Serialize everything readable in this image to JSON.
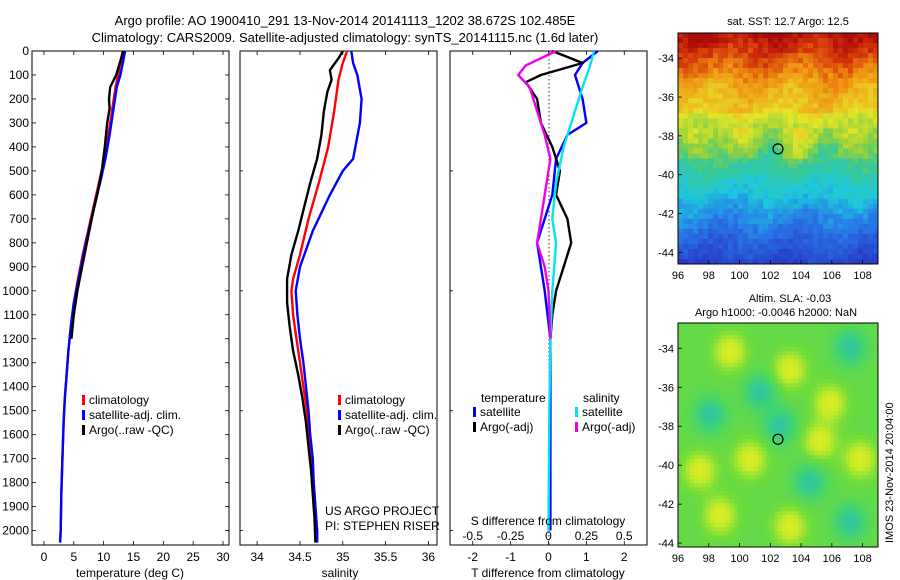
{
  "header": {
    "line1": "Argo profile: AO 1900410_291 13-Nov-2014 20141113_1202 38.672S 102.485E",
    "line2": "Climatology: CARS2009. Satellite-adjusted climatology: synTS_20141115.nc (1.6d later)"
  },
  "colors": {
    "climatology": "#ff0000",
    "satellite": "#0000ff",
    "argo": "#000000",
    "sal_satellite": "#00e5ee",
    "sal_argo": "#ee00ee"
  },
  "chart_data": [
    {
      "id": "temperature",
      "type": "line",
      "xlabel": "temperature (deg C)",
      "ylabel": "",
      "xlim": [
        -2,
        31
      ],
      "ylim": [
        2060,
        0
      ],
      "xticks": [
        0,
        5,
        10,
        15,
        20,
        25,
        30
      ],
      "yticks": [
        0,
        100,
        200,
        300,
        400,
        500,
        600,
        700,
        800,
        900,
        1000,
        1100,
        1200,
        1300,
        1400,
        1500,
        1600,
        1700,
        1800,
        1900,
        2000
      ],
      "legend": [
        "climatology",
        "satellite-adj. clim.",
        "Argo(..raw -QC)"
      ],
      "series": [
        {
          "name": "climatology",
          "color": "#ff0000",
          "points": [
            [
              13.2,
              0
            ],
            [
              12.9,
              40
            ],
            [
              12.4,
              100
            ],
            [
              12.0,
              150
            ],
            [
              11.4,
              250
            ],
            [
              10.8,
              350
            ],
            [
              10.1,
              450
            ],
            [
              9.2,
              550
            ],
            [
              8.3,
              650
            ],
            [
              7.4,
              750
            ],
            [
              6.5,
              850
            ],
            [
              5.7,
              950
            ],
            [
              5.0,
              1050
            ],
            [
              4.5,
              1150
            ],
            [
              4.1,
              1250
            ],
            [
              3.8,
              1350
            ],
            [
              3.5,
              1450
            ],
            [
              3.3,
              1550
            ],
            [
              3.1,
              1700
            ],
            [
              2.9,
              1850
            ],
            [
              2.8,
              2000
            ],
            [
              2.7,
              2050
            ]
          ]
        },
        {
          "name": "satellite-adj. clim.",
          "color": "#0000ff",
          "points": [
            [
              13.6,
              0
            ],
            [
              13.3,
              40
            ],
            [
              12.8,
              100
            ],
            [
              12.2,
              150
            ],
            [
              11.6,
              250
            ],
            [
              11.0,
              350
            ],
            [
              10.3,
              450
            ],
            [
              9.4,
              550
            ],
            [
              8.4,
              650
            ],
            [
              7.5,
              750
            ],
            [
              6.6,
              850
            ],
            [
              5.8,
              950
            ],
            [
              5.0,
              1050
            ],
            [
              4.5,
              1150
            ],
            [
              4.1,
              1250
            ],
            [
              3.8,
              1350
            ],
            [
              3.5,
              1450
            ],
            [
              3.3,
              1550
            ],
            [
              3.1,
              1700
            ],
            [
              2.9,
              1850
            ],
            [
              2.8,
              2000
            ],
            [
              2.7,
              2050
            ]
          ]
        },
        {
          "name": "Argo(..raw -QC)",
          "color": "#000000",
          "points": [
            [
              13.3,
              0
            ],
            [
              12.7,
              50
            ],
            [
              12.1,
              100
            ],
            [
              11.1,
              150
            ],
            [
              10.9,
              200
            ],
            [
              11.0,
              240
            ],
            [
              10.6,
              300
            ],
            [
              10.2,
              400
            ],
            [
              9.7,
              500
            ],
            [
              8.9,
              600
            ],
            [
              8.0,
              700
            ],
            [
              7.2,
              800
            ],
            [
              6.4,
              900
            ],
            [
              5.6,
              1000
            ],
            [
              5.0,
              1100
            ],
            [
              4.6,
              1200
            ]
          ]
        }
      ]
    },
    {
      "id": "salinity",
      "type": "line",
      "xlabel": "salinity",
      "ylabel": "",
      "xlim": [
        33.8,
        36.1
      ],
      "ylim": [
        2060,
        0
      ],
      "xticks": [
        34,
        34.5,
        35,
        35.5,
        36
      ],
      "xticklabels": [
        "34",
        "34.5",
        "35",
        "35.5",
        "36"
      ],
      "legend": [
        "climatology",
        "satellite-adj. clim.",
        "Argo(..raw -QC)"
      ],
      "annotation": [
        "US ARGO PROJECT",
        "PI: STEPHEN RISER"
      ],
      "series": [
        {
          "name": "climatology",
          "color": "#ff0000",
          "points": [
            [
              35.05,
              0
            ],
            [
              35.0,
              50
            ],
            [
              34.95,
              120
            ],
            [
              34.9,
              250
            ],
            [
              34.83,
              400
            ],
            [
              34.72,
              550
            ],
            [
              34.6,
              700
            ],
            [
              34.5,
              850
            ],
            [
              34.42,
              950
            ],
            [
              34.4,
              1000
            ],
            [
              34.42,
              1100
            ],
            [
              34.46,
              1200
            ],
            [
              34.5,
              1300
            ],
            [
              34.54,
              1400
            ],
            [
              34.58,
              1500
            ],
            [
              34.61,
              1600
            ],
            [
              34.64,
              1700
            ],
            [
              34.66,
              1800
            ],
            [
              34.68,
              1900
            ],
            [
              34.7,
              2000
            ],
            [
              34.7,
              2050
            ]
          ]
        },
        {
          "name": "satellite-adj. clim.",
          "color": "#0000ff",
          "points": [
            [
              35.1,
              0
            ],
            [
              35.12,
              50
            ],
            [
              35.17,
              100
            ],
            [
              35.22,
              200
            ],
            [
              35.2,
              300
            ],
            [
              35.12,
              450
            ],
            [
              35.0,
              500
            ],
            [
              34.85,
              600
            ],
            [
              34.65,
              750
            ],
            [
              34.5,
              900
            ],
            [
              34.45,
              1000
            ],
            [
              34.47,
              1100
            ],
            [
              34.5,
              1200
            ],
            [
              34.54,
              1300
            ],
            [
              34.57,
              1400
            ],
            [
              34.6,
              1500
            ],
            [
              34.62,
              1600
            ],
            [
              34.65,
              1700
            ],
            [
              34.66,
              1800
            ],
            [
              34.68,
              1900
            ],
            [
              34.7,
              2000
            ],
            [
              34.7,
              2050
            ]
          ]
        },
        {
          "name": "Argo(..raw -QC)",
          "color": "#000000",
          "points": [
            [
              35.0,
              0
            ],
            [
              34.95,
              30
            ],
            [
              34.85,
              80
            ],
            [
              34.87,
              120
            ],
            [
              34.82,
              170
            ],
            [
              34.78,
              250
            ],
            [
              34.75,
              350
            ],
            [
              34.7,
              450
            ],
            [
              34.62,
              550
            ],
            [
              34.55,
              650
            ],
            [
              34.48,
              750
            ],
            [
              34.4,
              850
            ],
            [
              34.35,
              950
            ],
            [
              34.35,
              1050
            ],
            [
              34.38,
              1150
            ],
            [
              34.42,
              1250
            ],
            [
              34.48,
              1350
            ],
            [
              34.53,
              1450
            ],
            [
              34.57,
              1550
            ],
            [
              34.6,
              1650
            ],
            [
              34.63,
              1750
            ],
            [
              34.65,
              1850
            ],
            [
              34.67,
              1950
            ],
            [
              34.68,
              2050
            ]
          ]
        }
      ]
    },
    {
      "id": "difference",
      "type": "line",
      "xlabel": "T difference from climatology",
      "xlabel2": "S difference from climatology",
      "xlim": [
        -2.6,
        2.6
      ],
      "ylim": [
        2060,
        0
      ],
      "xticks": [
        -2,
        -1,
        0,
        1,
        2
      ],
      "xticks2": [
        -0.5,
        -0.25,
        0,
        0.25,
        0.5
      ],
      "xticklabels2": [
        "-0.5",
        "-0.25",
        "0",
        "0.25",
        "0.5"
      ],
      "legend_temperature_title": "temperature",
      "legend_salinity_title": "salinity",
      "legend_temperature": [
        "satellite",
        "Argo(-adj)"
      ],
      "legend_salinity": [
        "satellite",
        "Argo(-adj)"
      ],
      "series": [
        {
          "name": "satellite",
          "group": "temperature",
          "color": "#0000ff",
          "points": [
            [
              1.3,
              0
            ],
            [
              0.9,
              50
            ],
            [
              0.7,
              100
            ],
            [
              0.9,
              200
            ],
            [
              1.0,
              300
            ],
            [
              0.5,
              350
            ],
            [
              0.2,
              450
            ],
            [
              0.1,
              600
            ],
            [
              -0.1,
              700
            ],
            [
              -0.3,
              800
            ],
            [
              -0.2,
              900
            ],
            [
              -0.1,
              1000
            ],
            [
              0.05,
              1200
            ],
            [
              0.05,
              1500
            ],
            [
              0.05,
              2000
            ]
          ]
        },
        {
          "name": "Argo(-adj)",
          "group": "temperature",
          "color": "#000000",
          "points": [
            [
              0.1,
              0
            ],
            [
              0.9,
              50
            ],
            [
              -0.2,
              100
            ],
            [
              -0.6,
              130
            ],
            [
              -0.3,
              200
            ],
            [
              -0.2,
              300
            ],
            [
              0.1,
              400
            ],
            [
              0.3,
              500
            ],
            [
              0.2,
              600
            ],
            [
              0.5,
              700
            ],
            [
              0.6,
              800
            ],
            [
              0.4,
              900
            ],
            [
              0.2,
              1000
            ],
            [
              0.1,
              1100
            ],
            [
              0.05,
              1200
            ]
          ]
        },
        {
          "name": "satellite",
          "group": "salinity",
          "color": "#00e5ee",
          "points": [
            [
              1.2,
              0
            ],
            [
              1.1,
              60
            ],
            [
              0.9,
              150
            ],
            [
              0.7,
              250
            ],
            [
              0.4,
              400
            ],
            [
              0.2,
              550
            ],
            [
              0.1,
              700
            ],
            [
              0.2,
              800
            ],
            [
              0.15,
              900
            ],
            [
              0.1,
              1000
            ],
            [
              0.05,
              1200
            ],
            [
              0.02,
              1500
            ],
            [
              0.0,
              2000
            ]
          ]
        },
        {
          "name": "Argo(-adj)",
          "group": "salinity",
          "color": "#ee00ee",
          "points": [
            [
              0.2,
              0
            ],
            [
              -0.6,
              60
            ],
            [
              -0.8,
              100
            ],
            [
              -0.5,
              150
            ],
            [
              -0.3,
              250
            ],
            [
              -0.1,
              350
            ],
            [
              0.05,
              450
            ],
            [
              -0.1,
              600
            ],
            [
              -0.2,
              700
            ],
            [
              -0.3,
              800
            ],
            [
              -0.1,
              900
            ],
            [
              0.0,
              1000
            ],
            [
              0.05,
              1200
            ]
          ]
        }
      ]
    }
  ],
  "maps": [
    {
      "id": "sst",
      "title": "sat. SST: 12.7 Argo: 12.5",
      "title_lines": [],
      "xlim": [
        96,
        109
      ],
      "ylim": [
        -44.6,
        -32.7
      ],
      "xticks": [
        96,
        98,
        100,
        102,
        104,
        106,
        108
      ],
      "yticks": [
        -34,
        -36,
        -38,
        -40,
        -42,
        -44
      ],
      "marker": [
        102.5,
        -38.67
      ]
    },
    {
      "id": "sla",
      "title": "",
      "title_lines": [
        "Altim. SLA: -0.03",
        "Argo h1000: -0.0046 h2000: NaN"
      ],
      "xlim": [
        96,
        109
      ],
      "ylim": [
        -44.2,
        -32.7
      ],
      "xticks": [
        96,
        98,
        100,
        102,
        104,
        106,
        108
      ],
      "yticks": [
        -34,
        -36,
        -38,
        -40,
        -42,
        -44
      ],
      "marker": [
        102.5,
        -38.67
      ]
    }
  ],
  "side_label": "IMOS 23-Nov-2014 20:04:00"
}
